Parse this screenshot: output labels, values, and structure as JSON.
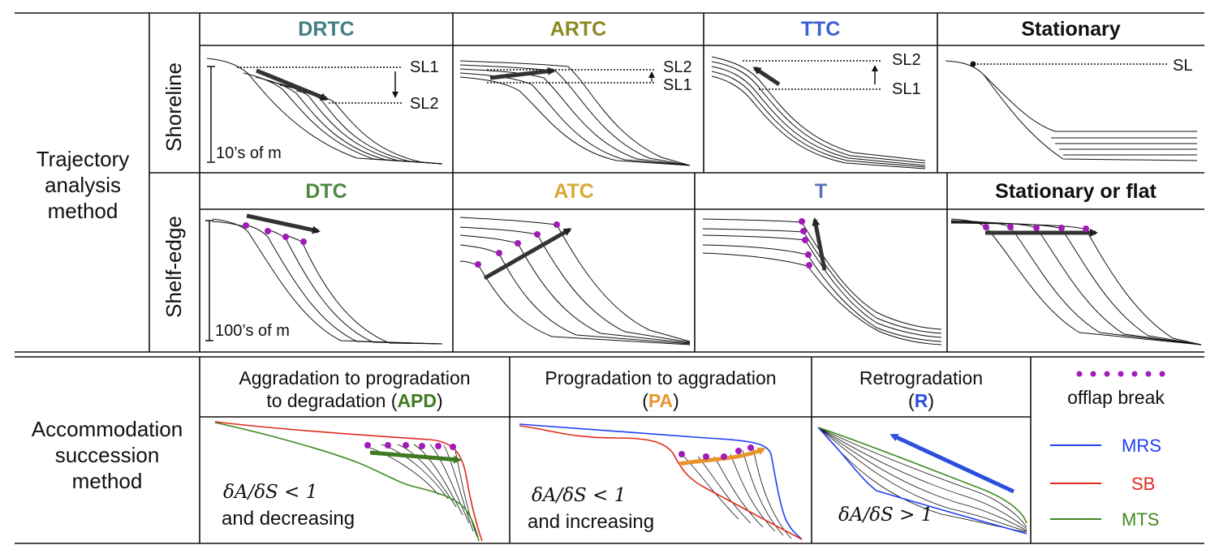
{
  "sections": {
    "trajectory": "Trajectory\nanalysis\nmethod",
    "accommodation": "Accommodation\nsuccession\nmethod"
  },
  "rows": {
    "shoreline": "Shoreline",
    "shelf_edge": "Shelf-edge"
  },
  "shoreline_panels": [
    {
      "title": "DRTC",
      "color": "#3f7f83"
    },
    {
      "title": "ARTC",
      "color": "#8a8a22"
    },
    {
      "title": "TTC",
      "color": "#3f5fd4"
    },
    {
      "title": "Stationary",
      "color": "#111111"
    }
  ],
  "shelf_panels": [
    {
      "title": "DTC",
      "color": "#4a8a3f"
    },
    {
      "title": "ATC",
      "color": "#d9a83a"
    },
    {
      "title": "T",
      "color": "#5575b4"
    },
    {
      "title": "Stationary or flat",
      "color": "#111111"
    }
  ],
  "sl_labels": {
    "sl1": "SL1",
    "sl2": "SL2",
    "sl": "SL"
  },
  "scales": {
    "shoreline": "10’s of m",
    "shelf": "100’s of m"
  },
  "acc": {
    "apd": {
      "line1": "Aggradation to progradation",
      "line2a": "to degradation (",
      "code": "APD",
      "line2b": ")",
      "code_color": "#3f7a22",
      "formula": "δA/δS < 1",
      "note": "and decreasing"
    },
    "pa": {
      "line1": "Progradation to aggradation",
      "line2a": "(",
      "code": "PA",
      "line2b": ")",
      "code_color": "#e8952e",
      "formula": "δA/δS < 1",
      "note": "and increasing"
    },
    "r": {
      "line1": "Retrogradation",
      "line2a": "(",
      "code": "R",
      "line2b": ")",
      "code_color": "#2a4fe0",
      "formula": "δA/δS > 1"
    }
  },
  "legend": {
    "offlap": "offlap break",
    "items": [
      {
        "label": "MRS",
        "color": "#1f3ff0"
      },
      {
        "label": "SB",
        "color": "#e02a1a"
      },
      {
        "label": "MTS",
        "color": "#3f8a22"
      }
    ],
    "dot_color": "#a11bb8"
  }
}
